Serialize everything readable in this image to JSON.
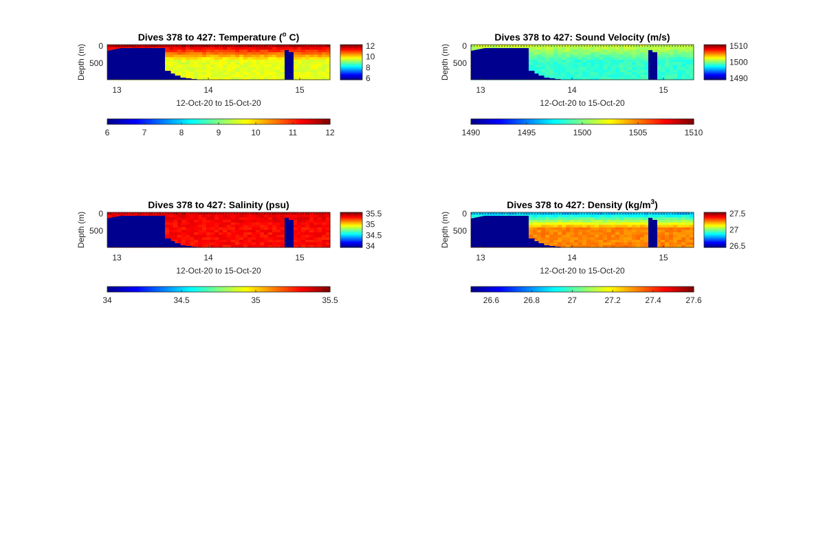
{
  "colors": {
    "land": "#00008f",
    "axis": "#262626",
    "colormap": [
      "#00008f",
      "#0000ff",
      "#0080ff",
      "#00ffff",
      "#80ff80",
      "#ffff00",
      "#ff8000",
      "#ff0000",
      "#800000"
    ]
  },
  "chart_data": [
    {
      "type": "heatmap",
      "id": "temperature",
      "title_prefix": "Dives 378 to 427: Temperature (",
      "title_sup": "o",
      "title_suffix": " C)",
      "xlabel": "12-Oct-20 to 15-Oct-20",
      "ylabel": "Depth (m)",
      "x_ticks": [
        "13",
        "14",
        "15"
      ],
      "y_ticks": [
        "0",
        "500"
      ],
      "clim": [
        6,
        12
      ],
      "surface_value": 11.6,
      "deep_value": 9.6,
      "side_colorbar_ticks": [
        "12",
        "10",
        "8",
        "6"
      ],
      "bottom_colorbar_ticks": [
        "6",
        "7",
        "8",
        "9",
        "10",
        "11",
        "12"
      ]
    },
    {
      "type": "heatmap",
      "id": "sound-velocity",
      "title_prefix": "Dives 378 to 427: Sound Velocity (m/s)",
      "title_sup": "",
      "title_suffix": "",
      "xlabel": "12-Oct-20 to 15-Oct-20",
      "ylabel": "Depth (m)",
      "x_ticks": [
        "13",
        "14",
        "15"
      ],
      "y_ticks": [
        "0",
        "500"
      ],
      "clim": [
        1490,
        1510
      ],
      "surface_value": 1501.5,
      "deep_value": 1498.5,
      "side_colorbar_ticks": [
        "1510",
        "1500",
        "1490"
      ],
      "bottom_colorbar_ticks": [
        "1490",
        "1495",
        "1500",
        "1505",
        "1510"
      ]
    },
    {
      "type": "heatmap",
      "id": "salinity",
      "title_prefix": "Dives 378 to 427: Salinity (psu)",
      "title_sup": "",
      "title_suffix": "",
      "xlabel": "12-Oct-20 to 15-Oct-20",
      "ylabel": "Depth (m)",
      "x_ticks": [
        "13",
        "14",
        "15"
      ],
      "y_ticks": [
        "0",
        "500"
      ],
      "clim": [
        34,
        35.5
      ],
      "surface_value": 35.35,
      "deep_value": 35.3,
      "side_colorbar_ticks": [
        "35.5",
        "35",
        "34.5",
        "34"
      ],
      "bottom_colorbar_ticks": [
        "34",
        "34.5",
        "35",
        "35.5"
      ]
    },
    {
      "type": "heatmap",
      "id": "density",
      "title_prefix": "Dives 378 to 427: Density (kg/m",
      "title_sup": "3",
      "title_suffix": ")",
      "xlabel": "12-Oct-20 to 15-Oct-20",
      "ylabel": "Depth (m)",
      "x_ticks": [
        "13",
        "14",
        "15"
      ],
      "y_ticks": [
        "0",
        "500"
      ],
      "clim": [
        26.5,
        27.6
      ],
      "surface_value": 26.85,
      "deep_value": 27.32,
      "side_colorbar_ticks": [
        "27.5",
        "27",
        "26.5"
      ],
      "bottom_colorbar_ticks": [
        "26.6",
        "26.8",
        "27",
        "27.2",
        "27.4",
        "27.6"
      ]
    }
  ]
}
